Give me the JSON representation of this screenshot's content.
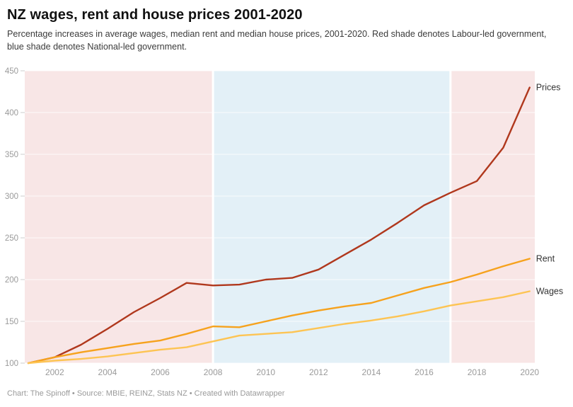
{
  "header": {
    "title": "NZ wages, rent and house prices 2001-2020",
    "subtitle": "Percentage increases in average wages, median rent and median house prices, 2001-2020. Red shade denotes Labour-led government,\nblue shade denotes National-led government."
  },
  "chart_data": {
    "type": "line",
    "x": [
      2001,
      2002,
      2003,
      2004,
      2005,
      2006,
      2007,
      2008,
      2009,
      2010,
      2011,
      2012,
      2013,
      2014,
      2015,
      2016,
      2017,
      2018,
      2019,
      2020
    ],
    "series": [
      {
        "name": "Prices",
        "color": "#b0381d",
        "values": [
          100,
          107,
          122,
          141,
          161,
          178,
          196,
          193,
          194,
          200,
          202,
          212,
          230,
          248,
          268,
          289,
          304,
          318,
          358,
          430
        ]
      },
      {
        "name": "Rent",
        "color": "#f6a21d",
        "values": [
          100,
          107,
          113,
          118,
          123,
          127,
          135,
          144,
          143,
          150,
          157,
          163,
          168,
          172,
          181,
          190,
          197,
          206,
          216,
          225
        ]
      },
      {
        "name": "Wages",
        "color": "#fdc453",
        "values": [
          100,
          103,
          105,
          108,
          112,
          116,
          119,
          126,
          133,
          135,
          137,
          142,
          147,
          151,
          156,
          162,
          169,
          174,
          179,
          186
        ]
      }
    ],
    "ylim": [
      100,
      450
    ],
    "yticks": [
      100,
      150,
      200,
      250,
      300,
      350,
      400,
      450
    ],
    "xticks": [
      2002,
      2004,
      2006,
      2008,
      2010,
      2012,
      2014,
      2016,
      2018,
      2020
    ],
    "bands": [
      {
        "from": 2001,
        "to": 2008,
        "color": "#f8e6e6",
        "meaning": "Labour-led government"
      },
      {
        "from": 2008,
        "to": 2017,
        "color": "#e3f0f7",
        "meaning": "National-led government"
      },
      {
        "from": 2017,
        "to": 2020,
        "color": "#f8e6e6",
        "meaning": "Labour-led government"
      }
    ],
    "grid": true,
    "legend_position": "right-of-line-endpoints",
    "xlabel": "",
    "ylabel": ""
  },
  "footer": {
    "text": "Chart: The Spinoff • Source: MBIE, REINZ, Stats NZ • Created with Datawrapper"
  },
  "colors": {
    "band_labour": "#f8e6e6",
    "band_national": "#e3f0f7",
    "axis_text": "#9a9a9a",
    "series_label_text": "#333333",
    "gridline": "rgba(255,255,255,0.78)",
    "tick_mark": "#cccccc"
  }
}
